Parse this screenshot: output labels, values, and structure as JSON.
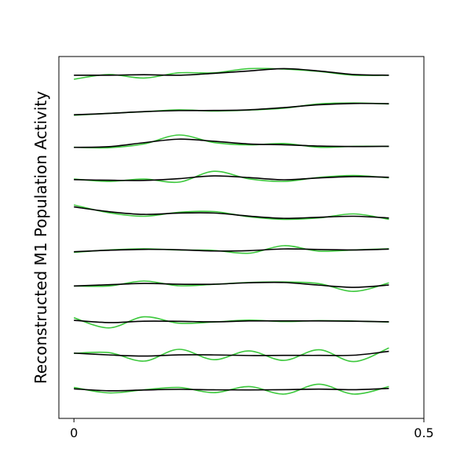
{
  "chart_data": {
    "type": "line",
    "title": "",
    "xlabel": "",
    "ylabel": "Reconstructed M1 Population Activity",
    "xlim": [
      -0.0215,
      0.5
    ],
    "x_ticks": [
      "0",
      "0.5"
    ],
    "x_tick_values": [
      0,
      0.5
    ],
    "y_ticks": [],
    "grid": false,
    "legend": "none",
    "colors": {
      "green": "#3cc83c",
      "black": "#000000",
      "frame": "#000000"
    },
    "trace_spacing": 1,
    "x": [
      0,
      0.05,
      0.1,
      0.15,
      0.2,
      0.25,
      0.3,
      0.35,
      0.4,
      0.45
    ],
    "traces": [
      {
        "offset": 9,
        "green": [
          0.35,
          0.55,
          0.4,
          0.62,
          0.62,
          0.8,
          0.78,
          0.68,
          0.52,
          0.52
        ],
        "black": [
          0.52,
          0.52,
          0.54,
          0.52,
          0.6,
          0.7,
          0.8,
          0.7,
          0.55,
          0.52
        ]
      },
      {
        "offset": 8,
        "green": [
          0.3,
          0.38,
          0.45,
          0.53,
          0.48,
          0.52,
          0.6,
          0.78,
          0.82,
          0.78
        ]
      },
      {
        "offset": 7,
        "green": [
          0.42,
          0.4,
          0.56,
          0.94,
          0.62,
          0.52,
          0.58,
          0.42,
          0.46,
          0.46
        ]
      },
      {
        "offset": 6,
        "green": [
          0.55,
          0.45,
          0.55,
          0.42,
          0.88,
          0.56,
          0.45,
          0.62,
          0.7,
          0.6
        ]
      },
      {
        "offset": 5,
        "green": [
          0.93,
          0.6,
          0.45,
          0.62,
          0.65,
          0.43,
          0.32,
          0.38,
          0.55,
          0.32
        ]
      },
      {
        "offset": 4,
        "green": [
          0.4,
          0.5,
          0.55,
          0.5,
          0.48,
          0.36,
          0.68,
          0.45,
          0.5,
          0.55
        ]
      },
      {
        "offset": 3,
        "green": [
          0.45,
          0.45,
          0.66,
          0.46,
          0.52,
          0.6,
          0.62,
          0.55,
          0.22,
          0.58
        ]
      },
      {
        "offset": 2,
        "green": [
          0.58,
          0.15,
          0.62,
          0.35,
          0.4,
          0.48,
          0.42,
          0.46,
          0.44,
          0.4
        ]
      },
      {
        "offset": 1,
        "green": [
          0.55,
          0.58,
          0.22,
          0.72,
          0.28,
          0.65,
          0.25,
          0.7,
          0.2,
          0.78
        ]
      },
      {
        "offset": 0,
        "green": [
          0.58,
          0.35,
          0.48,
          0.58,
          0.36,
          0.62,
          0.3,
          0.72,
          0.3,
          0.62
        ]
      }
    ]
  }
}
